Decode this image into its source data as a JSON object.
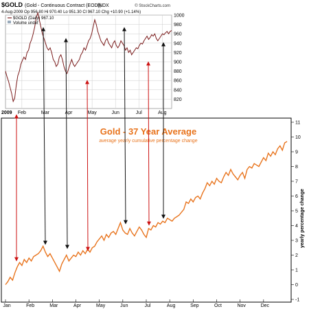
{
  "header": {
    "symbol": "$GOLD",
    "name": "(Gold - Continuous Contract (EOD))",
    "exchange": "INDX",
    "watermark": "© StockCharts.com",
    "quote_line": "4-Aug-2009   Op 956.80  Hi 970.40  Lo 951.30  Cl 967.10  Chg +10.90 (+1.14%)",
    "legend_series": "$GOLD (Daily) 967.10",
    "legend_volume": "Volume undef"
  },
  "colors": {
    "price_line": "#7a1a1a",
    "average_line": "#e8731c",
    "red_arrow": "#cc1111",
    "black_arrow": "#111111",
    "title": "#e8731c",
    "grid": "#cccccc"
  },
  "chart_data": [
    {
      "type": "line",
      "title": "$GOLD (Daily) 967.10",
      "year_label": "2009",
      "x_ticks": [
        "Feb",
        "Mar",
        "Apr",
        "May",
        "Jun",
        "Jul",
        "Aug"
      ],
      "ylim": [
        800,
        1000
      ],
      "y_ticks": [
        820,
        840,
        860,
        880,
        900,
        920,
        940,
        960,
        980,
        1000
      ],
      "grid": true,
      "series": [
        {
          "x": [
            0,
            2,
            4,
            6,
            8,
            10,
            12,
            14,
            16,
            18,
            20,
            22,
            24,
            26,
            28,
            30,
            32,
            34,
            36,
            38,
            40,
            42,
            44,
            46,
            48,
            50,
            52,
            54,
            56,
            58,
            60,
            62,
            64,
            66,
            68,
            70,
            72,
            74,
            76,
            78,
            80,
            82,
            84,
            86,
            88,
            90,
            92,
            94,
            96,
            98,
            100,
            102,
            104,
            106,
            108,
            110,
            112,
            114,
            116,
            118,
            120,
            122,
            124,
            126,
            128,
            130,
            132,
            134,
            136,
            138,
            140,
            142,
            144,
            146,
            148,
            150,
            152,
            154,
            156,
            158,
            160,
            162,
            164,
            166,
            168,
            170,
            172,
            174,
            176,
            178,
            180,
            182,
            184,
            186,
            188,
            190,
            192,
            194,
            196,
            198,
            200,
            202,
            204,
            206,
            208,
            210,
            212,
            214,
            216
          ],
          "values": [
            880,
            868,
            858,
            845,
            832,
            815,
            822,
            850,
            870,
            880,
            895,
            903,
            910,
            905,
            920,
            925,
            940,
            948,
            960,
            975,
            995,
            1005,
            990,
            975,
            960,
            950,
            940,
            930,
            925,
            930,
            920,
            905,
            900,
            890,
            895,
            910,
            915,
            905,
            890,
            880,
            875,
            885,
            895,
            905,
            895,
            890,
            895,
            900,
            905,
            915,
            920,
            930,
            925,
            935,
            945,
            950,
            960,
            975,
            990,
            980,
            965,
            955,
            945,
            940,
            935,
            945,
            950,
            940,
            935,
            930,
            940,
            945,
            935,
            930,
            935,
            945,
            940,
            935,
            925,
            930,
            920,
            925,
            915,
            920,
            925,
            930,
            928,
            935,
            940,
            938,
            945,
            950,
            955,
            948,
            952,
            958,
            955,
            960,
            950,
            945,
            950,
            955,
            960,
            958,
            962,
            965,
            960,
            965,
            967
          ]
        }
      ]
    },
    {
      "type": "line",
      "title": "Gold - 37 Year Average",
      "subtitle": "average yearly cumulative percentage change",
      "ylabel": "yearly percentage change",
      "x_ticks": [
        "Jan",
        "Feb",
        "Mar",
        "Apr",
        "May",
        "Jun",
        "Jul",
        "Aug",
        "Sep",
        "Oct",
        "Nov",
        "Dec"
      ],
      "ylim": [
        -1,
        11
      ],
      "y_ticks": [
        -1,
        0,
        1,
        2,
        3,
        4,
        5,
        6,
        7,
        8,
        9,
        10,
        11
      ],
      "grid": false,
      "series": [
        {
          "x": [
            0,
            0.1,
            0.2,
            0.3,
            0.4,
            0.5,
            0.6,
            0.7,
            0.8,
            0.9,
            1.0,
            1.1,
            1.2,
            1.3,
            1.4,
            1.5,
            1.6,
            1.7,
            1.8,
            1.9,
            2.0,
            2.1,
            2.2,
            2.3,
            2.4,
            2.5,
            2.6,
            2.7,
            2.8,
            2.9,
            3.0,
            3.1,
            3.2,
            3.3,
            3.4,
            3.5,
            3.6,
            3.7,
            3.8,
            3.9,
            4.0,
            4.1,
            4.2,
            4.3,
            4.4,
            4.5,
            4.6,
            4.7,
            4.8,
            4.9,
            5.0,
            5.1,
            5.2,
            5.3,
            5.4,
            5.5,
            5.6,
            5.7,
            5.8,
            5.9,
            6.0,
            6.1,
            6.2,
            6.3,
            6.4,
            6.5,
            6.6,
            6.7,
            6.8,
            6.9,
            7.0,
            7.1,
            7.2,
            7.3,
            7.4,
            7.5,
            7.6,
            7.7,
            7.8,
            7.9,
            8.0,
            8.1,
            8.2,
            8.3,
            8.4,
            8.5,
            8.6,
            8.7,
            8.8,
            8.9,
            9.0,
            9.1,
            9.2,
            9.3,
            9.4,
            9.5,
            9.6,
            9.7,
            9.8,
            9.9,
            10.0,
            10.1,
            10.2,
            10.3,
            10.4,
            10.5,
            10.6,
            10.7,
            10.8,
            10.9,
            11.0,
            11.1,
            11.2,
            11.3,
            11.4,
            11.5,
            11.6,
            11.7,
            11.8,
            11.9,
            12.0
          ],
          "values": [
            0.0,
            0.2,
            0.5,
            0.3,
            0.8,
            1.2,
            1.5,
            1.3,
            1.7,
            1.5,
            1.8,
            1.6,
            1.9,
            2.0,
            2.1,
            2.3,
            2.6,
            2.2,
            1.9,
            2.1,
            1.8,
            1.5,
            1.2,
            0.9,
            1.4,
            1.7,
            2.0,
            1.6,
            1.8,
            2.0,
            1.9,
            2.2,
            2.0,
            2.3,
            2.1,
            2.4,
            2.2,
            2.5,
            2.6,
            2.9,
            3.1,
            3.3,
            3.0,
            3.4,
            3.2,
            3.5,
            3.6,
            3.4,
            3.8,
            4.2,
            3.7,
            3.5,
            3.4,
            3.8,
            3.5,
            3.3,
            3.6,
            3.9,
            3.7,
            3.4,
            3.2,
            3.8,
            3.7,
            4.0,
            3.9,
            4.2,
            4.1,
            4.3,
            4.2,
            4.5,
            4.4,
            4.3,
            4.5,
            4.6,
            4.7,
            4.9,
            5.1,
            5.6,
            5.5,
            5.8,
            5.6,
            5.9,
            6.0,
            5.8,
            6.2,
            6.5,
            6.9,
            6.7,
            7.0,
            6.8,
            7.2,
            7.0,
            6.9,
            7.3,
            7.6,
            7.4,
            7.8,
            7.5,
            7.3,
            7.1,
            7.4,
            7.6,
            7.2,
            7.8,
            8.0,
            7.9,
            8.2,
            8.1,
            8.0,
            8.3,
            8.6,
            8.4,
            8.9,
            8.7,
            9.0,
            8.8,
            9.2,
            9.4,
            9.1,
            9.6,
            9.7
          ]
        }
      ]
    }
  ]
}
